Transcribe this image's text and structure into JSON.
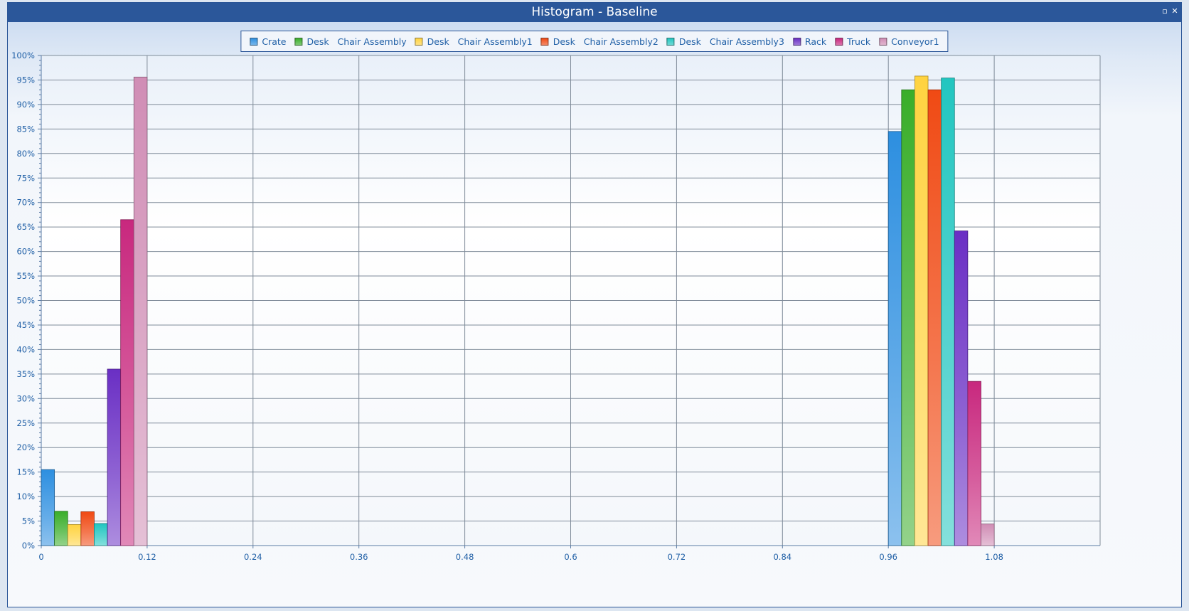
{
  "window": {
    "title": "Histogram - Baseline",
    "restore_icon": "restore-icon",
    "close_icon": "close-icon",
    "restore_glyph": "▫",
    "close_glyph": "✕"
  },
  "chart_data": {
    "type": "bar",
    "title": "Histogram - Baseline",
    "xlabel": "",
    "ylabel": "",
    "grid": true,
    "legend_position": "top-center",
    "xlim": [
      0,
      1.2
    ],
    "ylim": [
      0,
      100
    ],
    "x_ticks": [
      "0",
      "0.12",
      "0.24",
      "0.36",
      "0.48",
      "0.6",
      "0.72",
      "0.84",
      "0.96",
      "1.08"
    ],
    "y_ticks": [
      "0%",
      "5%",
      "10%",
      "15%",
      "20%",
      "25%",
      "30%",
      "35%",
      "40%",
      "45%",
      "50%",
      "55%",
      "60%",
      "65%",
      "70%",
      "75%",
      "80%",
      "85%",
      "90%",
      "95%",
      "100%"
    ],
    "bins": [
      {
        "start": 0,
        "end": 0.12
      },
      {
        "start": 0.96,
        "end": 1.08
      }
    ],
    "series": [
      {
        "name": "Crate",
        "color": "#2d8fe0",
        "values": [
          15.5,
          84.5
        ]
      },
      {
        "name": "Desk   Chair Assembly",
        "color": "#3aae2a",
        "values": [
          7,
          93
        ]
      },
      {
        "name": "Desk   Chair Assembly1",
        "color": "#ffd340",
        "values": [
          4.3,
          95.8
        ]
      },
      {
        "name": "Desk   Chair Assembly2",
        "color": "#f04a14",
        "values": [
          6.9,
          93
        ]
      },
      {
        "name": "Desk   Chair Assembly3",
        "color": "#22c6c0",
        "values": [
          4.5,
          95.4
        ]
      },
      {
        "name": "Rack",
        "color": "#6a2fc4",
        "values": [
          36,
          64.2
        ]
      },
      {
        "name": "Truck",
        "color": "#c8287e",
        "values": [
          66.5,
          33.5
        ]
      },
      {
        "name": "Conveyor1",
        "color": "#d08db5",
        "values": [
          95.6,
          4.4
        ]
      }
    ]
  }
}
